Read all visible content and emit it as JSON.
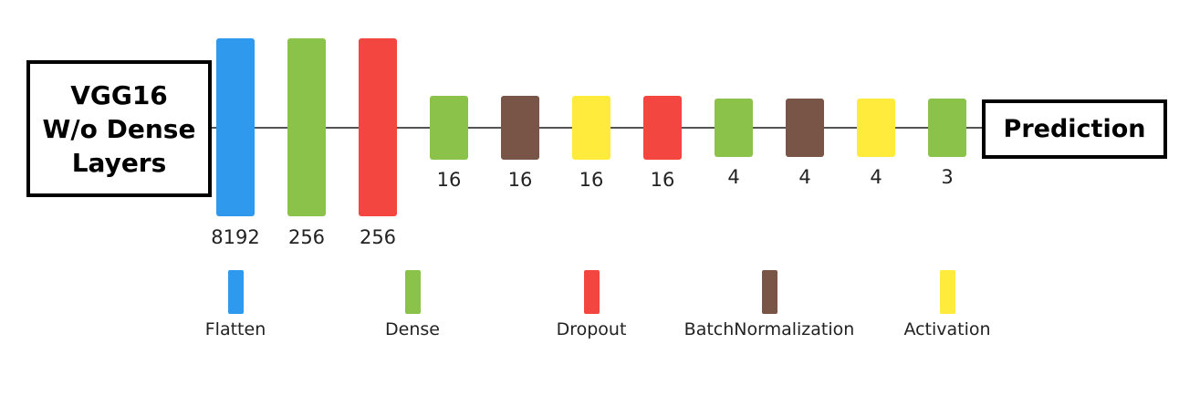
{
  "input_box": {
    "label": "VGG16\nW/o Dense\nLayers"
  },
  "output_box": {
    "label": "Prediction"
  },
  "colors": {
    "Flatten": "#2f99ee",
    "Dense": "#8bc34a",
    "Dropout": "#f44640",
    "BatchNormalization": "#795548",
    "Activation": "#ffeb3b"
  },
  "layers": [
    {
      "type": "Flatten",
      "size": "8192"
    },
    {
      "type": "Dense",
      "size": "256"
    },
    {
      "type": "Dropout",
      "size": "256"
    },
    {
      "type": "Dense",
      "size": "16"
    },
    {
      "type": "BatchNormalization",
      "size": "16"
    },
    {
      "type": "Activation",
      "size": "16"
    },
    {
      "type": "Dropout",
      "size": "16"
    },
    {
      "type": "Dense",
      "size": "4"
    },
    {
      "type": "BatchNormalization",
      "size": "4"
    },
    {
      "type": "Activation",
      "size": "4"
    },
    {
      "type": "Dense",
      "size": "3"
    }
  ],
  "legend": [
    {
      "type": "Flatten",
      "label": "Flatten"
    },
    {
      "type": "Dense",
      "label": "Dense"
    },
    {
      "type": "Dropout",
      "label": "Dropout"
    },
    {
      "type": "BatchNormalization",
      "label": "BatchNormalization"
    },
    {
      "type": "Activation",
      "label": "Activation"
    }
  ]
}
